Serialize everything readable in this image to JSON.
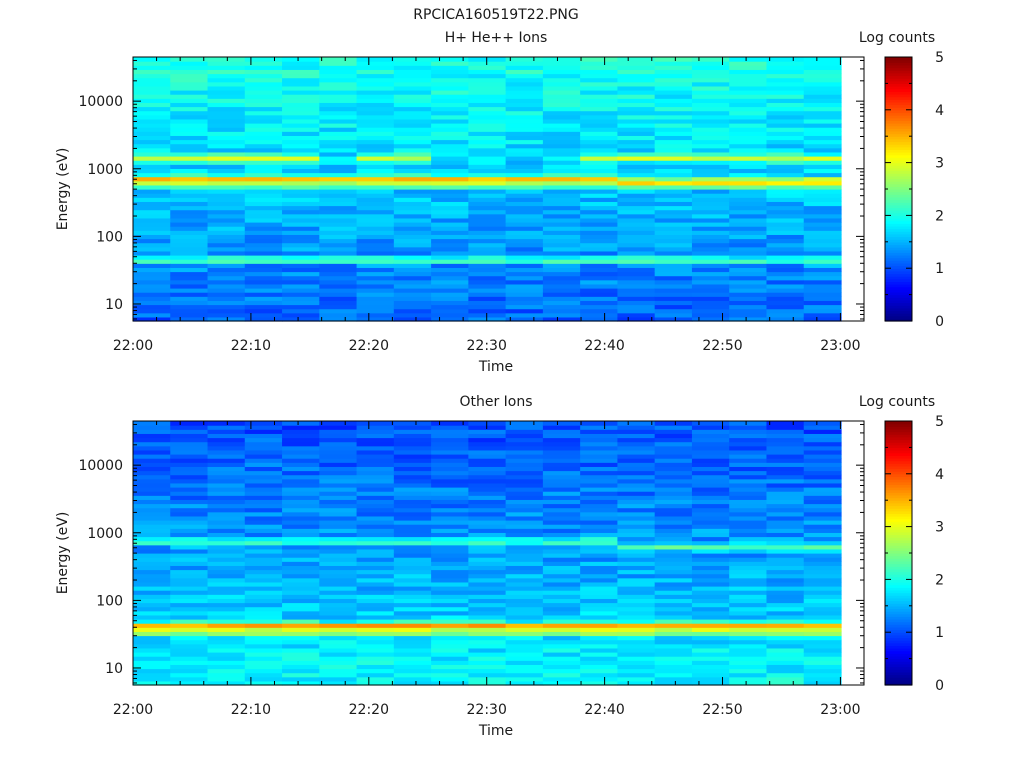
{
  "figure_title": "RPCICA160519T22.PNG",
  "chart_data": [
    {
      "type": "heatmap",
      "title": "H+ He++ Ions",
      "xlabel": "Time",
      "ylabel": "Energy (eV)",
      "x_tick_labels": [
        "22:00",
        "22:10",
        "22:20",
        "22:30",
        "22:40",
        "22:50",
        "23:00"
      ],
      "x_range": [
        "22:00",
        "23:02"
      ],
      "y_scale": "log",
      "y_tick_labels": [
        "10",
        "100",
        "1000",
        "10000"
      ],
      "y_range": [
        5.6,
        45000
      ],
      "colorbar": {
        "label": "Log counts",
        "tick_labels": [
          "0",
          "1",
          "2",
          "3",
          "4",
          "5"
        ],
        "range": [
          0,
          5
        ],
        "colormap": "jet"
      },
      "bands": [
        {
          "energy_ev": 1450,
          "log_counts": 2.9,
          "note": "intermittent"
        },
        {
          "energy_ev": 700,
          "log_counts": 3.6
        },
        {
          "energy_ev": 600,
          "log_counts": 2.9
        },
        {
          "energy_ev": 45,
          "log_counts": 2.4
        }
      ],
      "background_log_counts": {
        "high_energy": 2.0,
        "mid_energy": 1.6,
        "low_energy": 1.1
      }
    },
    {
      "type": "heatmap",
      "title": "Other Ions",
      "xlabel": "Time",
      "ylabel": "Energy (eV)",
      "x_tick_labels": [
        "22:00",
        "22:10",
        "22:20",
        "22:30",
        "22:40",
        "22:50",
        "23:00"
      ],
      "x_range": [
        "22:00",
        "23:02"
      ],
      "y_scale": "log",
      "y_tick_labels": [
        "10",
        "100",
        "1000",
        "10000"
      ],
      "y_range": [
        5.6,
        45000
      ],
      "colorbar": {
        "label": "Log counts",
        "tick_labels": [
          "0",
          "1",
          "2",
          "3",
          "4",
          "5"
        ],
        "range": [
          0,
          5
        ],
        "colormap": "jet"
      },
      "bands": [
        {
          "energy_ev": 750,
          "log_counts": 2.3
        },
        {
          "energy_ev": 42,
          "log_counts": 3.8
        },
        {
          "energy_ev": 35,
          "log_counts": 3.1
        }
      ],
      "background_log_counts": {
        "high_energy": 1.0,
        "mid_energy": 1.4,
        "low_energy": 1.9
      }
    }
  ]
}
